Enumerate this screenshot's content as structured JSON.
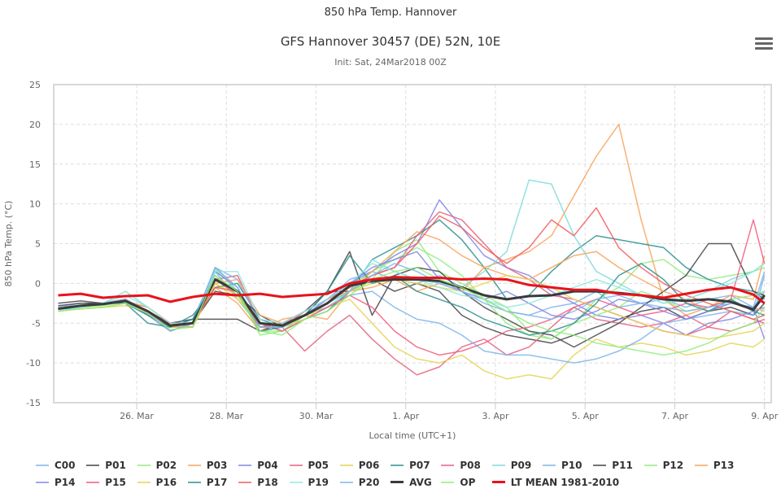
{
  "header": {
    "title": "850 hPa Temp. Hannover",
    "subtitle": "GFS Hannover 30457 (DE) 52N, 10E",
    "init": "Init: Sat, 24Mar2018 00Z",
    "menu_icon": "hamburger-menu-icon"
  },
  "chart_data": {
    "type": "line",
    "title": "GFS Hannover 30457 (DE) 52N, 10E",
    "subtitle": "Init: Sat, 24Mar2018 00Z",
    "xlabel": "Local time (UTC+1)",
    "ylabel": "850 hPa Temp. (°C)",
    "ylim": [
      -15,
      25
    ],
    "yticks": [
      25,
      20,
      15,
      10,
      5,
      0,
      -5,
      -10,
      -15
    ],
    "x_unit": "days since 24 Mar 00:00",
    "xlim": [
      0.15,
      16.15
    ],
    "xticks": [
      {
        "x": 2,
        "label": "26. Mar"
      },
      {
        "x": 4,
        "label": "28. Mar"
      },
      {
        "x": 6,
        "label": "30. Mar"
      },
      {
        "x": 8,
        "label": "1. Apr"
      },
      {
        "x": 10,
        "label": "3. Apr"
      },
      {
        "x": 12,
        "label": "5. Apr"
      },
      {
        "x": 14,
        "label": "7. Apr"
      },
      {
        "x": 16,
        "label": "9. Apr"
      }
    ],
    "grid": true,
    "legend_position": "bottom",
    "x": [
      0.25,
      0.75,
      1.25,
      1.75,
      2.25,
      2.75,
      3.25,
      3.75,
      4.25,
      4.75,
      5.25,
      5.75,
      6.25,
      6.75,
      7.25,
      7.75,
      8.25,
      8.75,
      9.25,
      9.75,
      10.25,
      10.75,
      11.25,
      11.75,
      12.25,
      12.75,
      13.25,
      13.75,
      14.25,
      14.75,
      15.25,
      15.75,
      16.0
    ],
    "series": [
      {
        "name": "C00",
        "color": "#7cb5ec",
        "width": 1.5,
        "values": [
          -3.2,
          -2.8,
          -2.5,
          -2.0,
          -3.5,
          -5.5,
          -4.5,
          1.5,
          -2.0,
          -5.5,
          -5.0,
          -4.0,
          -2.0,
          0.5,
          1.5,
          0.5,
          0.0,
          1.0,
          -0.5,
          -2.0,
          -3.5,
          -4.0,
          -3.0,
          -2.5,
          -1.0,
          -3.0,
          -2.5,
          -2.0,
          -3.0,
          -2.0,
          -1.5,
          -3.0,
          -1.0
        ]
      },
      {
        "name": "P01",
        "color": "#434348",
        "width": 1.5,
        "values": [
          -2.5,
          -2.2,
          -2.5,
          -2.0,
          -4.0,
          -5.0,
          -4.5,
          -4.5,
          -4.5,
          -6.0,
          -5.0,
          -3.5,
          -1.0,
          -1.0,
          0.5,
          -1.0,
          0.0,
          -1.0,
          -4.0,
          -5.5,
          -6.5,
          -7.0,
          -7.5,
          -6.5,
          -5.5,
          -4.5,
          -3.5,
          -3.0,
          -4.5,
          -3.5,
          -3.0,
          -4.0,
          -2.5
        ]
      },
      {
        "name": "P02",
        "color": "#90ed7d",
        "width": 1.5,
        "values": [
          -3.5,
          -3.0,
          -2.5,
          -2.0,
          -3.5,
          -5.5,
          -5.5,
          1.8,
          -1.0,
          -6.5,
          -6.0,
          -4.5,
          -3.0,
          -1.0,
          0.5,
          4.0,
          5.5,
          1.5,
          0.0,
          -1.5,
          -3.0,
          -6.0,
          -7.0,
          -5.0,
          -2.0,
          -0.5,
          2.5,
          3.0,
          1.0,
          0.5,
          1.0,
          1.5,
          2.0
        ]
      },
      {
        "name": "P03",
        "color": "#f7a35c",
        "width": 1.5,
        "values": [
          -3.0,
          -3.0,
          -2.5,
          -2.5,
          -3.5,
          -6.0,
          -5.0,
          -0.5,
          -2.5,
          -6.0,
          -4.5,
          -4.0,
          -4.5,
          -1.0,
          -0.5,
          0.5,
          -1.0,
          0.0,
          -1.0,
          2.0,
          3.0,
          4.0,
          6.0,
          11.0,
          16.0,
          20.0,
          8.0,
          -2.0,
          -4.0,
          -3.0,
          -1.5,
          -2.0,
          3.5
        ]
      },
      {
        "name": "P04",
        "color": "#8085e9",
        "width": 1.5,
        "values": [
          -3.2,
          -3.0,
          -2.5,
          -2.5,
          -4.0,
          -6.0,
          -5.0,
          1.0,
          -1.5,
          -5.0,
          -6.0,
          -4.0,
          -2.0,
          0.0,
          1.5,
          3.5,
          5.0,
          10.5,
          7.0,
          3.5,
          2.0,
          1.0,
          -1.0,
          -2.5,
          -4.0,
          -4.5,
          -4.0,
          -5.0,
          -6.5,
          -5.0,
          -4.5,
          -3.5,
          -3.0
        ]
      },
      {
        "name": "P05",
        "color": "#e4607e",
        "width": 1.5,
        "values": [
          -3.0,
          -2.8,
          -2.5,
          -2.0,
          -3.8,
          -5.5,
          -5.0,
          0.5,
          -1.5,
          -5.5,
          -5.5,
          -8.5,
          -6.0,
          -4.0,
          -7.0,
          -9.5,
          -11.5,
          -10.5,
          -8.0,
          -7.0,
          -9.0,
          -8.0,
          -5.5,
          -3.0,
          -4.5,
          -5.0,
          -5.5,
          -5.0,
          -4.0,
          -5.5,
          -6.0,
          -5.0,
          -4.5
        ]
      },
      {
        "name": "P06",
        "color": "#e4d354",
        "width": 1.5,
        "values": [
          -3.5,
          -3.2,
          -3.0,
          -2.5,
          -3.5,
          -5.5,
          -5.5,
          0.0,
          -2.0,
          -5.0,
          -6.0,
          -4.0,
          -3.0,
          -2.0,
          -5.0,
          -8.0,
          -9.5,
          -10.0,
          -9.0,
          -11.0,
          -12.0,
          -11.5,
          -12.0,
          -9.0,
          -7.0,
          -8.0,
          -7.5,
          -8.0,
          -9.0,
          -8.5,
          -7.5,
          -8.0,
          -7.0
        ]
      },
      {
        "name": "P07",
        "color": "#2b908f",
        "width": 1.5,
        "values": [
          -3.5,
          -3.0,
          -2.5,
          -2.5,
          -5.0,
          -5.5,
          -4.0,
          -0.5,
          0.0,
          -4.5,
          -5.5,
          -4.5,
          -3.5,
          -1.0,
          3.0,
          4.5,
          6.0,
          8.0,
          5.5,
          2.0,
          -2.0,
          -1.5,
          1.5,
          4.0,
          6.0,
          5.5,
          5.0,
          4.5,
          2.0,
          0.5,
          -0.5,
          -1.0,
          -2.0
        ]
      },
      {
        "name": "P08",
        "color": "#e4607e",
        "width": 1.5,
        "values": [
          -3.0,
          -2.8,
          -2.7,
          -2.3,
          -3.0,
          -5.0,
          -5.5,
          0.5,
          1.0,
          -5.0,
          -5.5,
          -3.5,
          -2.0,
          -0.5,
          1.0,
          2.0,
          6.0,
          9.0,
          8.0,
          5.0,
          2.0,
          0.5,
          -1.5,
          -2.0,
          -3.0,
          -4.0,
          -5.0,
          -6.0,
          -6.5,
          -5.5,
          -3.5,
          -4.5,
          -5.0
        ]
      },
      {
        "name": "P09",
        "color": "#7fdbda",
        "width": 1.5,
        "values": [
          -3.5,
          -3.0,
          -2.5,
          -1.0,
          -3.0,
          -5.0,
          -5.0,
          2.0,
          -1.0,
          -5.5,
          -5.5,
          -4.5,
          -3.0,
          -1.0,
          3.0,
          1.5,
          0.5,
          0.0,
          -0.5,
          1.5,
          4.0,
          13.0,
          12.5,
          6.0,
          1.5,
          0.0,
          -1.5,
          -2.5,
          -2.0,
          -1.0,
          0.5,
          1.5,
          2.5
        ]
      },
      {
        "name": "P10",
        "color": "#7cb5ec",
        "width": 1.5,
        "values": [
          -3.0,
          -2.5,
          -2.5,
          -2.0,
          -3.5,
          -5.5,
          -5.0,
          2.0,
          0.5,
          -5.0,
          -6.0,
          -4.0,
          -3.0,
          -1.5,
          -1.0,
          -3.0,
          -4.5,
          -5.0,
          -6.5,
          -8.5,
          -9.0,
          -9.0,
          -9.5,
          -10.0,
          -9.5,
          -8.5,
          -7.0,
          -5.0,
          -4.5,
          -4.0,
          -3.5,
          -4.0,
          1.0
        ]
      },
      {
        "name": "P11",
        "color": "#434348",
        "width": 1.5,
        "values": [
          -2.8,
          -2.5,
          -2.5,
          -2.2,
          -3.5,
          -5.0,
          -5.0,
          -1.0,
          -1.5,
          -4.0,
          -5.5,
          -4.0,
          -1.0,
          4.0,
          -4.0,
          1.0,
          2.0,
          1.5,
          -1.0,
          -3.0,
          -4.5,
          -6.0,
          -6.5,
          -8.0,
          -6.5,
          -5.0,
          -3.0,
          -1.0,
          1.0,
          5.0,
          5.0,
          -1.0,
          -1.5
        ]
      },
      {
        "name": "P12",
        "color": "#90ed7d",
        "width": 1.5,
        "values": [
          -3.5,
          -3.0,
          -2.8,
          -2.3,
          -3.5,
          -5.0,
          -5.5,
          1.0,
          -1.5,
          -6.0,
          -6.0,
          -4.0,
          -2.5,
          -0.5,
          1.5,
          3.0,
          4.5,
          3.0,
          1.0,
          -2.0,
          -5.0,
          -6.5,
          -7.0,
          -5.0,
          -4.0,
          -3.0,
          -1.0,
          -2.0,
          -3.5,
          -3.0,
          -2.0,
          -1.5,
          -1.0
        ]
      },
      {
        "name": "P13",
        "color": "#f7a35c",
        "width": 1.5,
        "values": [
          -3.0,
          -2.8,
          -2.5,
          -2.2,
          -3.0,
          -5.0,
          -5.5,
          0.0,
          0.5,
          -4.0,
          -5.0,
          -3.5,
          -2.0,
          -1.0,
          1.5,
          4.0,
          6.5,
          5.5,
          3.5,
          2.0,
          1.0,
          0.5,
          2.0,
          3.5,
          4.0,
          2.0,
          0.5,
          -1.0,
          -2.0,
          -3.5,
          -2.5,
          -3.0,
          -3.5
        ]
      },
      {
        "name": "P14",
        "color": "#8085e9",
        "width": 1.5,
        "values": [
          -3.2,
          -3.0,
          -2.5,
          -2.5,
          -3.5,
          -5.5,
          -5.5,
          1.5,
          -0.5,
          -5.5,
          -5.0,
          -3.5,
          -2.0,
          0.0,
          2.0,
          3.0,
          4.0,
          0.5,
          -1.0,
          -2.0,
          -1.0,
          -2.5,
          -4.0,
          -4.5,
          -3.5,
          -2.0,
          -2.5,
          -3.5,
          -4.5,
          -3.5,
          -2.5,
          -3.0,
          -7.0
        ]
      },
      {
        "name": "P15",
        "color": "#f15c80",
        "width": 1.5,
        "values": [
          -3.0,
          -2.8,
          -2.5,
          -2.2,
          -3.5,
          -5.5,
          -5.0,
          0.5,
          -1.0,
          -5.0,
          -6.0,
          -4.5,
          -3.0,
          -1.5,
          -3.0,
          -6.0,
          -8.0,
          -9.0,
          -8.5,
          -7.5,
          -6.0,
          -5.5,
          -4.5,
          -3.0,
          -2.0,
          -3.0,
          -4.0,
          -3.5,
          -2.5,
          -3.0,
          -2.0,
          8.0,
          2.5
        ]
      },
      {
        "name": "P16",
        "color": "#e4d354",
        "width": 1.5,
        "values": [
          -3.5,
          -3.2,
          -3.0,
          -2.8,
          -3.5,
          -5.5,
          -5.5,
          0.0,
          -1.5,
          -5.0,
          -5.5,
          -4.5,
          -2.5,
          -1.0,
          0.0,
          0.5,
          0.0,
          -0.5,
          -1.0,
          0.0,
          1.0,
          0.5,
          -0.5,
          -2.0,
          -3.0,
          -4.0,
          -5.0,
          -6.0,
          -6.5,
          -7.0,
          -6.5,
          -6.0,
          -5.0
        ]
      },
      {
        "name": "P17",
        "color": "#2b908f",
        "width": 1.5,
        "values": [
          -3.2,
          -3.0,
          -2.5,
          -2.5,
          -4.0,
          -5.5,
          -4.5,
          0.5,
          -1.0,
          -6.0,
          -5.5,
          -4.0,
          -1.0,
          3.5,
          0.0,
          1.0,
          -1.0,
          -2.0,
          -3.0,
          -4.5,
          -5.5,
          -6.5,
          -6.0,
          -5.0,
          -2.5,
          1.0,
          2.5,
          0.5,
          -2.5,
          -3.5,
          -2.0,
          -3.5,
          -4.0
        ]
      },
      {
        "name": "P18",
        "color": "#f45b5b",
        "width": 1.5,
        "values": [
          -3.0,
          -2.8,
          -2.5,
          -2.0,
          -3.5,
          -5.0,
          -5.0,
          -0.5,
          -1.0,
          -5.5,
          -5.0,
          -4.0,
          -2.5,
          -0.5,
          1.0,
          2.0,
          5.0,
          8.5,
          7.0,
          4.5,
          2.5,
          4.5,
          8.0,
          6.0,
          9.5,
          4.5,
          2.0,
          0.0,
          -1.5,
          -2.5,
          -3.5,
          -4.5,
          -4.0
        ]
      },
      {
        "name": "P19",
        "color": "#91e8e1",
        "width": 1.5,
        "values": [
          -3.5,
          -3.0,
          -2.5,
          -1.5,
          -3.0,
          -5.0,
          -5.0,
          1.5,
          1.5,
          -4.5,
          -5.0,
          -3.5,
          -2.0,
          0.0,
          2.5,
          1.5,
          0.5,
          -0.5,
          -1.5,
          -2.0,
          -3.0,
          -2.5,
          -1.5,
          -0.5,
          0.5,
          -0.5,
          -1.5,
          -2.5,
          -2.0,
          -1.0,
          0.0,
          1.5,
          2.5
        ]
      },
      {
        "name": "P20",
        "color": "#7cb5ec",
        "width": 1.5,
        "values": [
          -3.0,
          -2.8,
          -2.5,
          -2.0,
          -3.5,
          -6.0,
          -5.0,
          2.0,
          -0.5,
          -5.5,
          -5.5,
          -4.0,
          -2.5,
          -1.0,
          1.0,
          2.5,
          1.5,
          0.0,
          -1.0,
          -2.5,
          -3.5,
          -4.0,
          -4.5,
          -3.5,
          -2.0,
          -1.5,
          -2.5,
          -3.0,
          -3.5,
          -3.0,
          -2.5,
          -3.0,
          1.5
        ]
      },
      {
        "name": "AVG",
        "color": "#3a3a3a",
        "width": 3,
        "values": [
          -3.2,
          -2.8,
          -2.6,
          -2.2,
          -3.5,
          -5.3,
          -5.0,
          0.5,
          -1.0,
          -5.0,
          -5.3,
          -4.0,
          -2.5,
          -0.3,
          0.3,
          0.5,
          0.5,
          0.3,
          -0.5,
          -1.5,
          -2.0,
          -1.6,
          -1.5,
          -1.0,
          -1.0,
          -1.2,
          -1.5,
          -2.0,
          -2.2,
          -2.0,
          -2.3,
          -3.3,
          -1.5
        ]
      },
      {
        "name": "OP",
        "color": "#90ed7d",
        "width": 1.5,
        "values": [
          -3.5,
          -3.2,
          -3.0,
          -2.5,
          -3.8,
          -5.8,
          -5.5,
          1.0,
          -1.0,
          -6.0,
          -6.5,
          -4.5,
          -3.5,
          -1.5,
          0.5,
          1.5,
          2.0,
          0.5,
          -0.5,
          -2.0,
          -3.5,
          -5.0,
          -6.0,
          -6.5,
          -7.5,
          -8.0,
          -8.5,
          -9.0,
          -8.5,
          -7.5,
          -6.0,
          -5.0,
          -3.0
        ]
      },
      {
        "name": "LT MEAN 1981-2010",
        "color": "#e8121c",
        "width": 3,
        "values": [
          -1.5,
          -1.3,
          -1.8,
          -1.6,
          -1.5,
          -2.3,
          -1.7,
          -1.3,
          -1.5,
          -1.3,
          -1.7,
          -1.5,
          -1.3,
          0.0,
          0.5,
          0.8,
          0.7,
          0.7,
          0.5,
          0.6,
          0.5,
          -0.2,
          -0.5,
          -0.8,
          -0.8,
          -1.3,
          -1.5,
          -1.8,
          -1.3,
          -0.8,
          -0.5,
          -1.4,
          -2.5
        ]
      }
    ]
  },
  "axes": {
    "y_title": "850 hPa Temp. (°C)",
    "x_title": "Local time (UTC+1)"
  }
}
